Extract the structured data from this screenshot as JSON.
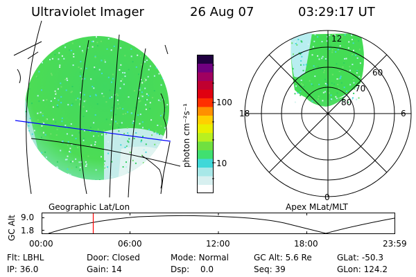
{
  "header": {
    "title": "Ultraviolet Imager",
    "date": "26 Aug 07",
    "time": "03:29:17 UT"
  },
  "colorbar": {
    "unit_label": "photon cm⁻²s⁻¹",
    "ticks": [
      "100",
      "10"
    ],
    "colors": [
      "#ffffff",
      "#d8f0f0",
      "#a8e8e8",
      "#40d8d8",
      "#40e070",
      "#70e040",
      "#b8f020",
      "#e8f000",
      "#ffd000",
      "#ff9000",
      "#ff3000",
      "#e00010",
      "#c00030",
      "#a00060",
      "#700080",
      "#200040"
    ]
  },
  "left_panel": {
    "caption": "Geographic Lat/Lon",
    "image_colors": {
      "main": "#44dd55",
      "light": "#b8f0f0",
      "pale": "#e0f4f4"
    }
  },
  "right_panel": {
    "caption": "Apex MLat/MLT",
    "mlt_labels": {
      "top": "12",
      "left": "18",
      "right": "6",
      "bottom": "0"
    },
    "lat_labels": [
      "60",
      "70",
      "80"
    ]
  },
  "altitude_plot": {
    "ylabel": "GC Alt",
    "yticks": [
      "9.0",
      "1.8"
    ],
    "xticks": [
      "00:00",
      "06:00",
      "12:00",
      "18:00",
      "23:59"
    ],
    "marker_color": "#ff0000"
  },
  "info_rows": [
    [
      {
        "label": "Flt:",
        "value": "LBHL"
      },
      {
        "label": "Door:",
        "value": "Closed"
      },
      {
        "label": "Mode:",
        "value": "Normal"
      },
      {
        "label": "GC Alt:",
        "value": "5.6 Re"
      },
      {
        "label": "GLat:",
        "value": "-50.3"
      }
    ],
    [
      {
        "label": "IP:",
        "value": "36.0"
      },
      {
        "label": "Gain:",
        "value": "14"
      },
      {
        "label": "Dsp:",
        "value": "0.0"
      },
      {
        "label": "Seq:",
        "value": "39"
      },
      {
        "label": "GLon:",
        "value": "124.2"
      }
    ]
  ]
}
